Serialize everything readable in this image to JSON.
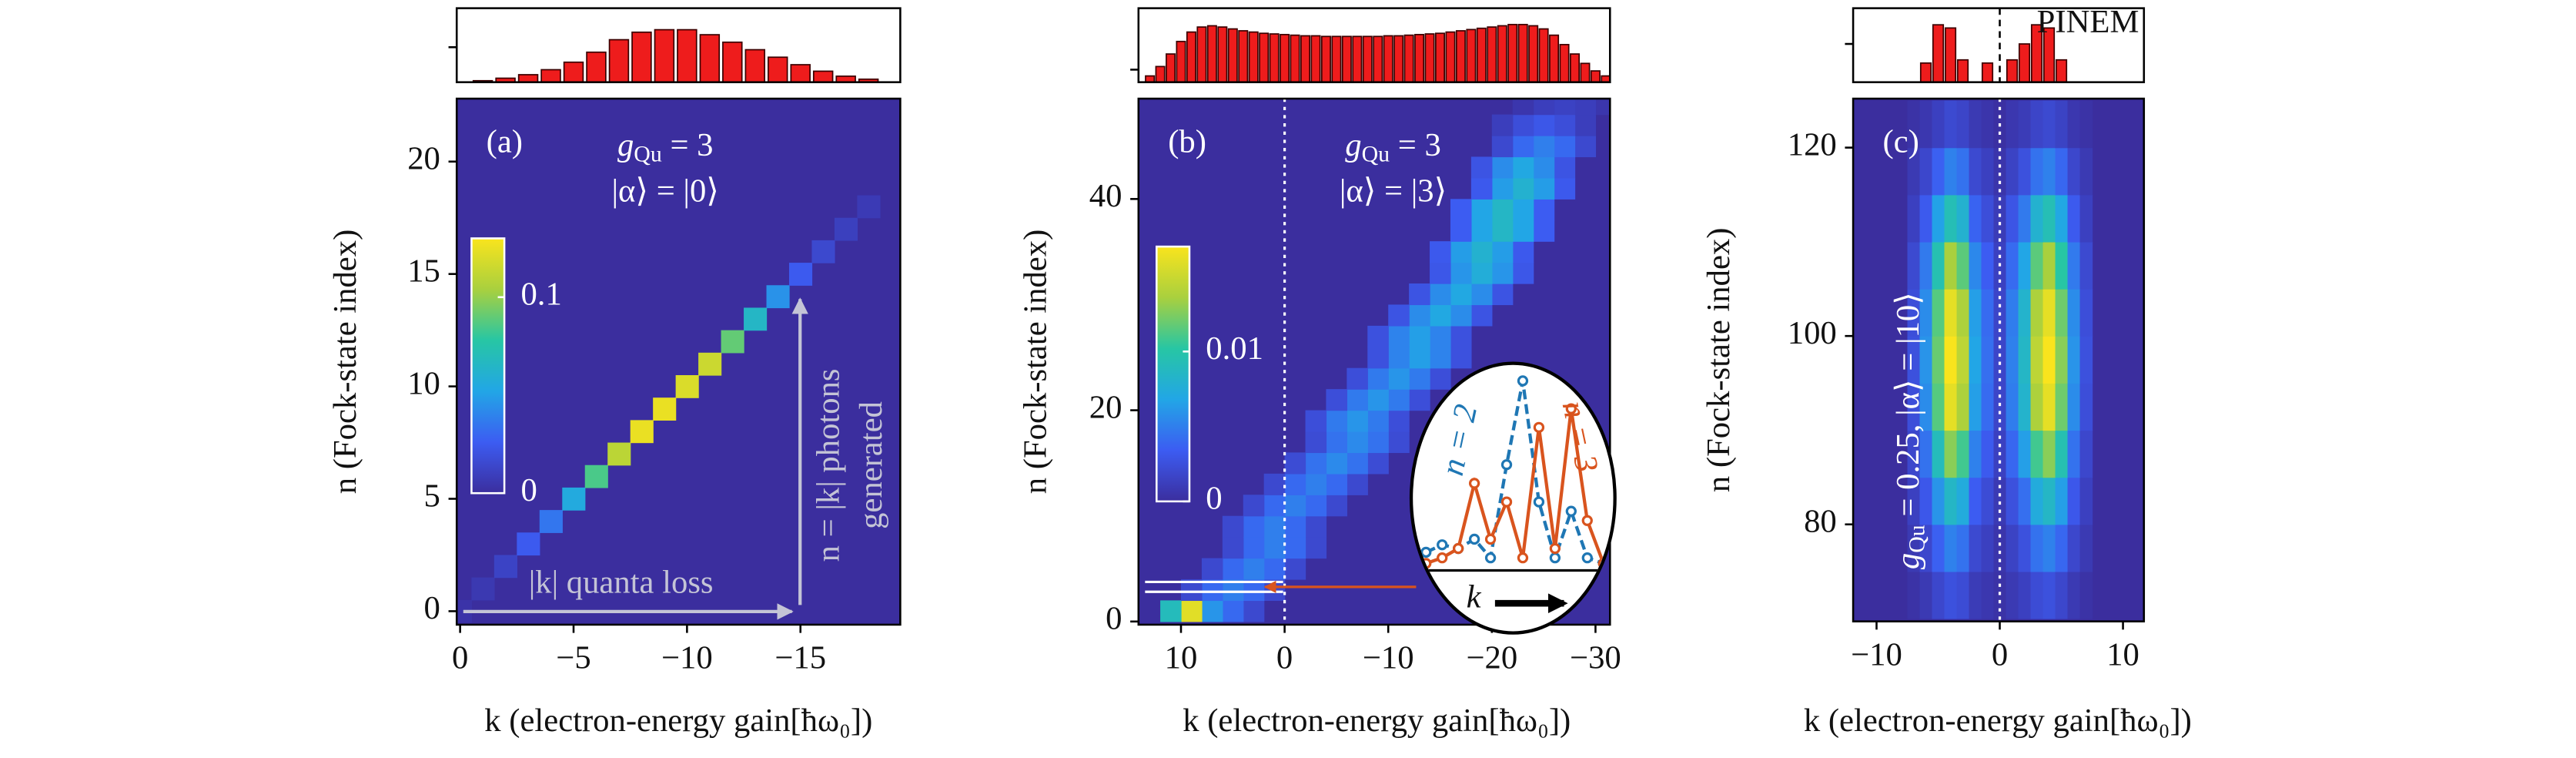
{
  "chart_data": [
    {
      "type": "heatmap",
      "panel_label": "(a)",
      "xlabel": "k (electron-energy gain[ħω₀])",
      "ylabel": "n (Fock-state index)",
      "xlim": [
        0.15,
        -19.4
      ],
      "ylim": [
        -0.6,
        22.8
      ],
      "xticks": [
        0,
        {
          "value": -5,
          "label": "−5"
        },
        {
          "value": -10,
          "label": "−10"
        },
        {
          "value": -15,
          "label": "−15"
        }
      ],
      "yticks": [
        0,
        5,
        10,
        15,
        20
      ],
      "colormap": [
        "#3b2e9e",
        "#3c5cf2",
        "#22a6e6",
        "#27c6a4",
        "#a9d03e",
        "#f9e41d"
      ],
      "clim": [
        0,
        0.13
      ],
      "cell_size": [
        1,
        1
      ],
      "rows": [
        {
          "n": 0,
          "k": 0,
          "values": [
            0.003
          ]
        },
        {
          "n": 1,
          "k": -1,
          "values": [
            0.006
          ]
        },
        {
          "n": 2,
          "k": -2,
          "values": [
            0.012
          ]
        },
        {
          "n": 3,
          "k": -3,
          "values": [
            0.025
          ]
        },
        {
          "n": 4,
          "k": -4,
          "values": [
            0.035
          ]
        },
        {
          "n": 5,
          "k": -5,
          "values": [
            0.055
          ]
        },
        {
          "n": 6,
          "k": -6,
          "values": [
            0.085
          ]
        },
        {
          "n": 7,
          "k": -7,
          "values": [
            0.11
          ]
        },
        {
          "n": 8,
          "k": -8,
          "values": [
            0.125
          ]
        },
        {
          "n": 9,
          "k": -9,
          "values": [
            0.125
          ]
        },
        {
          "n": 10,
          "k": -10,
          "values": [
            0.12
          ]
        },
        {
          "n": 11,
          "k": -11,
          "values": [
            0.115
          ]
        },
        {
          "n": 12,
          "k": -12,
          "values": [
            0.09
          ]
        },
        {
          "n": 13,
          "k": -13,
          "values": [
            0.065
          ]
        },
        {
          "n": 14,
          "k": -14,
          "values": [
            0.045
          ]
        },
        {
          "n": 15,
          "k": -15,
          "values": [
            0.025
          ]
        },
        {
          "n": 16,
          "k": -16,
          "values": [
            0.015
          ]
        },
        {
          "n": 17,
          "k": -17,
          "values": [
            0.01
          ]
        },
        {
          "n": 18,
          "k": -18,
          "values": [
            0.007
          ]
        }
      ],
      "colorbar": {
        "ticks": [
          0,
          0.1
        ]
      },
      "hist": {
        "k": [
          -1,
          -2,
          -3,
          -4,
          -5,
          -6,
          -7,
          -8,
          -9,
          -10,
          -11,
          -12,
          -13,
          -14,
          -15,
          -16,
          -17,
          -18
        ],
        "values": [
          0.003,
          0.008,
          0.015,
          0.025,
          0.04,
          0.06,
          0.085,
          0.1,
          0.105,
          0.105,
          0.095,
          0.08,
          0.065,
          0.05,
          0.035,
          0.022,
          0.012,
          0.006
        ],
        "ylim": [
          0,
          0.148
        ],
        "yticks": [
          0.07
        ],
        "color": "#ee1c1c"
      },
      "coupling": {
        "symbol": "g",
        "subscript": "Qu",
        "rest": "= 3"
      },
      "state": "|α⟩ = |0⟩",
      "loss_label": "|k| quanta loss",
      "photon_label": "n = |k| photons",
      "photon_label_2": "generated"
    },
    {
      "type": "heatmap",
      "panel_label": "(b)",
      "xlabel": "k (electron-energy gain[ħω₀])",
      "ylabel": "n (Fock-state index)",
      "xlim": [
        14.1,
        -31.4
      ],
      "ylim": [
        -0.3,
        49.5
      ],
      "xticks": [
        10,
        0,
        {
          "value": -10,
          "label": "−10"
        },
        {
          "value": -20,
          "label": "−20"
        },
        {
          "value": -30,
          "label": "−30"
        }
      ],
      "yticks": [
        0,
        20,
        40
      ],
      "colormap": [
        "#3b2e9e",
        "#3c5cf2",
        "#22a6e6",
        "#27c6a4",
        "#a9d03e",
        "#f9e41d"
      ],
      "clim": [
        0,
        0.017
      ],
      "cell_size": [
        2,
        2
      ],
      "zero_line": true,
      "rows": [
        {
          "n": 1,
          "k": 3,
          "values": [
            0.002,
            0.004,
            0.006,
            0.016,
            0.009
          ]
        },
        {
          "n": 3,
          "k": 1,
          "values": [
            0.002,
            0.004,
            0.005,
            0.004,
            0.002
          ]
        },
        {
          "n": 5,
          "k": -1,
          "values": [
            0.002,
            0.004,
            0.005,
            0.004,
            0.002
          ]
        },
        {
          "n": 7,
          "k": -3,
          "values": [
            0.002,
            0.004,
            0.005,
            0.004,
            0.002
          ]
        },
        {
          "n": 9,
          "k": -3,
          "values": [
            0.002,
            0.004,
            0.005,
            0.004,
            0.002
          ]
        },
        {
          "n": 11,
          "k": -5,
          "values": [
            0.002,
            0.004,
            0.005,
            0.004,
            0.002
          ]
        },
        {
          "n": 13,
          "k": -7,
          "values": [
            0.002,
            0.004,
            0.005,
            0.004,
            0.002
          ]
        },
        {
          "n": 15,
          "k": -9,
          "values": [
            0.0022,
            0.0044,
            0.0055,
            0.0044,
            0.0022
          ]
        },
        {
          "n": 17,
          "k": -11,
          "values": [
            0.0022,
            0.0044,
            0.0055,
            0.0044,
            0.0022
          ]
        },
        {
          "n": 19,
          "k": -11,
          "values": [
            0.0024,
            0.0048,
            0.006,
            0.0048,
            0.0024
          ]
        },
        {
          "n": 21,
          "k": -13,
          "values": [
            0.0024,
            0.0048,
            0.006,
            0.0048,
            0.0024
          ]
        },
        {
          "n": 23,
          "k": -15,
          "values": [
            0.0024,
            0.0048,
            0.006,
            0.0048,
            0.0024
          ]
        },
        {
          "n": 25,
          "k": -17,
          "values": [
            0.0026,
            0.0052,
            0.0065,
            0.0052,
            0.0026
          ]
        },
        {
          "n": 27,
          "k": -17,
          "values": [
            0.0026,
            0.0052,
            0.0065,
            0.0052,
            0.0026
          ]
        },
        {
          "n": 29,
          "k": -19,
          "values": [
            0.0028,
            0.0056,
            0.007,
            0.0056,
            0.0028
          ]
        },
        {
          "n": 31,
          "k": -21,
          "values": [
            0.0028,
            0.0056,
            0.007,
            0.0056,
            0.0028
          ]
        },
        {
          "n": 33,
          "k": -23,
          "values": [
            0.003,
            0.006,
            0.0075,
            0.006,
            0.003
          ]
        },
        {
          "n": 35,
          "k": -23,
          "values": [
            0.0032,
            0.0064,
            0.008,
            0.0064,
            0.0032
          ]
        },
        {
          "n": 37,
          "k": -25,
          "values": [
            0.0034,
            0.0068,
            0.0085,
            0.0068,
            0.0034
          ]
        },
        {
          "n": 39,
          "k": -25,
          "values": [
            0.0034,
            0.0068,
            0.0085,
            0.0068,
            0.0034
          ]
        },
        {
          "n": 41,
          "k": -27,
          "values": [
            0.0032,
            0.0064,
            0.008,
            0.0064,
            0.0032
          ]
        },
        {
          "n": 43,
          "k": -27,
          "values": [
            0.0028,
            0.0056,
            0.007,
            0.0056,
            0.0028
          ]
        },
        {
          "n": 45,
          "k": -29,
          "values": [
            0.002,
            0.004,
            0.005,
            0.004,
            0.002
          ]
        },
        {
          "n": 47,
          "k": -29,
          "values": [
            0.0012,
            0.0024,
            0.003,
            0.0024,
            0.0012
          ]
        },
        {
          "n": 49,
          "k": -31,
          "values": [
            0.0006,
            0.0012,
            0.0015,
            0.0012,
            0.0006
          ]
        }
      ],
      "colorbar": {
        "ticks": [
          0,
          0.01
        ]
      },
      "hist": {
        "k": [
          13,
          12,
          11,
          10,
          9,
          8,
          7,
          6,
          5,
          4,
          3,
          2,
          1,
          0,
          -1,
          -2,
          -3,
          -4,
          -5,
          -6,
          -7,
          -8,
          -9,
          -10,
          -11,
          -12,
          -13,
          -14,
          -15,
          -16,
          -17,
          -18,
          -19,
          -20,
          -21,
          -22,
          -23,
          -24,
          -25,
          -26,
          -27,
          -28,
          -29,
          -30,
          -31
        ],
        "values": [
          0.1,
          0.25,
          0.45,
          0.65,
          0.8,
          0.88,
          0.9,
          0.88,
          0.85,
          0.82,
          0.8,
          0.78,
          0.77,
          0.76,
          0.75,
          0.74,
          0.74,
          0.73,
          0.73,
          0.73,
          0.73,
          0.73,
          0.73,
          0.74,
          0.74,
          0.75,
          0.76,
          0.77,
          0.78,
          0.8,
          0.82,
          0.84,
          0.86,
          0.88,
          0.9,
          0.92,
          0.92,
          0.9,
          0.85,
          0.75,
          0.6,
          0.45,
          0.3,
          0.18,
          0.1
        ],
        "ylim": [
          0,
          1.18
        ],
        "yticks": [
          0.2
        ],
        "color": "#ee1c1c"
      },
      "coupling": {
        "symbol": "g",
        "subscript": "Qu",
        "rest": "= 3"
      },
      "state": "|α⟩ = |3⟩",
      "inset": {
        "ylim": [
          0,
          1.05
        ],
        "xlabel": "k",
        "series": [
          {
            "name": "n = 2",
            "color": "#1f77b4",
            "line": "dashed",
            "values": [
              0.08,
              0.12,
              0.1,
              0.15,
              0.05,
              0.55,
              1.0,
              0.35,
              0.05,
              0.3,
              0.05,
              0.02
            ]
          },
          {
            "name": "n = 3",
            "color": "#d9541e",
            "line": "solid",
            "values": [
              0.02,
              0.05,
              0.1,
              0.45,
              0.15,
              0.35,
              0.05,
              0.75,
              0.1,
              0.85,
              0.25,
              0.02
            ]
          }
        ]
      }
    },
    {
      "type": "heatmap",
      "panel_label": "(c)",
      "xlabel": "k (electron-energy gain[ħω₀])",
      "ylabel": "n (Fock-state index)",
      "xlim": [
        -11.9,
        11.7
      ],
      "ylim": [
        69.7,
        125.2
      ],
      "xticks": [
        {
          "value": -10,
          "label": "−10"
        },
        0,
        10
      ],
      "yticks": [
        80,
        100,
        120
      ],
      "colormap": [
        "#3b2e9e",
        "#3c5cf2",
        "#22a6e6",
        "#27c6a4",
        "#a9d03e",
        "#f9e41d"
      ],
      "clim": [
        0,
        1
      ],
      "cell_size": [
        1,
        5
      ],
      "zero_line": true,
      "rows": [
        {
          "n": 72.5,
          "k": -7,
          "values": [
            0.02,
            0.05,
            0.11,
            0.15,
            0.13,
            0.06,
            0.04,
            0.02,
            0.05,
            0.08,
            0.13,
            0.15,
            0.11,
            0.05,
            0.02
          ]
        },
        {
          "n": 77.5,
          "k": -7,
          "values": [
            0.05,
            0.11,
            0.21,
            0.3,
            0.26,
            0.12,
            0.08,
            0.03,
            0.09,
            0.15,
            0.26,
            0.3,
            0.23,
            0.11,
            0.05
          ]
        },
        {
          "n": 82.5,
          "k": -7,
          "values": [
            0.08,
            0.18,
            0.35,
            0.5,
            0.43,
            0.2,
            0.13,
            0.05,
            0.15,
            0.25,
            0.43,
            0.5,
            0.38,
            0.18,
            0.08
          ]
        },
        {
          "n": 87.5,
          "k": -7,
          "values": [
            0.11,
            0.26,
            0.53,
            0.75,
            0.64,
            0.3,
            0.19,
            0.08,
            0.23,
            0.38,
            0.64,
            0.75,
            0.56,
            0.26,
            0.11
          ]
        },
        {
          "n": 92.5,
          "k": -7,
          "values": [
            0.14,
            0.33,
            0.67,
            0.95,
            0.81,
            0.38,
            0.24,
            0.1,
            0.29,
            0.48,
            0.81,
            0.95,
            0.71,
            0.33,
            0.14
          ]
        },
        {
          "n": 97.5,
          "k": -7,
          "values": [
            0.15,
            0.35,
            0.7,
            1,
            0.85,
            0.4,
            0.25,
            0.1,
            0.3,
            0.5,
            0.85,
            1,
            0.75,
            0.35,
            0.15
          ]
        },
        {
          "n": 102.5,
          "k": -7,
          "values": [
            0.14,
            0.33,
            0.67,
            0.95,
            0.81,
            0.38,
            0.24,
            0.1,
            0.29,
            0.48,
            0.81,
            0.95,
            0.71,
            0.33,
            0.14
          ]
        },
        {
          "n": 107.5,
          "k": -7,
          "values": [
            0.12,
            0.28,
            0.56,
            0.8,
            0.68,
            0.32,
            0.2,
            0.08,
            0.24,
            0.4,
            0.68,
            0.8,
            0.6,
            0.28,
            0.12
          ]
        },
        {
          "n": 112.5,
          "k": -7,
          "values": [
            0.08,
            0.19,
            0.39,
            0.55,
            0.47,
            0.22,
            0.14,
            0.06,
            0.17,
            0.28,
            0.47,
            0.55,
            0.41,
            0.19,
            0.08
          ]
        },
        {
          "n": 117.5,
          "k": -7,
          "values": [
            0.05,
            0.11,
            0.21,
            0.3,
            0.26,
            0.12,
            0.08,
            0.03,
            0.09,
            0.15,
            0.26,
            0.3,
            0.23,
            0.11,
            0.05
          ]
        },
        {
          "n": 122.5,
          "k": -7,
          "values": [
            0.02,
            0.04,
            0.08,
            0.12,
            0.1,
            0.05,
            0.03,
            0.01,
            0.04,
            0.06,
            0.1,
            0.12,
            0.09,
            0.04,
            0.02
          ]
        }
      ],
      "hist": {
        "k": [
          -6,
          -5,
          -4,
          -3,
          -1,
          1,
          2,
          3,
          4,
          5
        ],
        "values": [
          0.3,
          0.9,
          0.85,
          0.35,
          0.3,
          0.35,
          0.6,
          0.9,
          0.85,
          0.35
        ],
        "ylim": [
          0,
          1.16
        ],
        "yticks": [
          0.6
        ],
        "color": "#ee1c1c",
        "zero_line": true,
        "label": "PINEM"
      },
      "coupling": {
        "symbol": "g",
        "subscript": "Qu",
        "rest": "= 0.25, |α⟩ = |10⟩"
      }
    }
  ]
}
